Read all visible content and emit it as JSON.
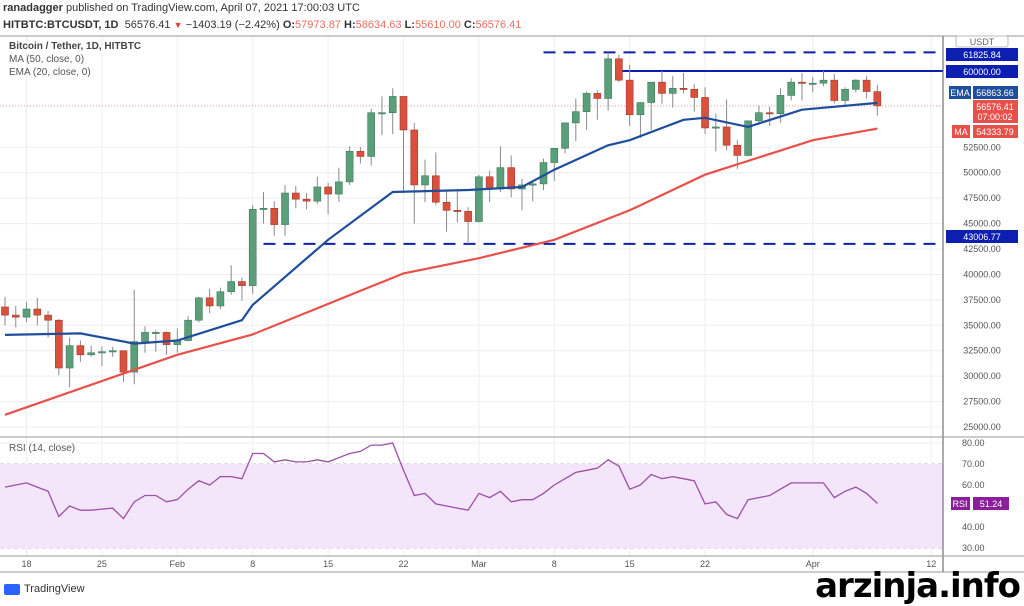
{
  "header": {
    "author": "ranadagger",
    "published_text": "published on TradingView.com, April 07, 2021 17:00:03 UTC",
    "symbol": "HITBTC:BTCUSDT, 1D",
    "last": "56576.41",
    "change": "−1403.19 (−2.42%)",
    "o_label": "O:",
    "o": "57973.87",
    "h_label": "H:",
    "h": "58634.63",
    "l_label": "L:",
    "l": "55610.00",
    "c_label": "C:",
    "c": "56576.41"
  },
  "legend": {
    "title": "Bitcoin / Tether, 1D, HITBTC",
    "ma": "MA (50, close, 0)",
    "ema": "EMA (20, close, 0)",
    "rsi": "RSI (14, close)"
  },
  "axis_labels": {
    "currency": "USDT",
    "ema_tag": "EMA",
    "ema_value": "56863.66",
    "ma_tag": "MA",
    "ma_value": "54333.79",
    "last_value": "56576.41",
    "countdown": "07:00:02",
    "level_61825": "61825.84",
    "level_60000": "60000.00",
    "level_43006": "43006.77",
    "rsi_tag": "RSI",
    "rsi_value": "51.24"
  },
  "footer": {
    "brand": "TradingView"
  },
  "watermark": "arzinja.info",
  "colors": {
    "up": "#5b9f7a",
    "down": "#d9503c",
    "ema": "#1f4e9c",
    "ma": "#e8504a",
    "level": "#0d1fb0",
    "rsi": "#9b4fa8",
    "rsi_band": "#f3e6fb",
    "tag_blue": "#0d1fb0",
    "tag_red": "#e8504a",
    "tag_purple": "#8a1f99"
  },
  "chart_data": [
    {
      "type": "candlestick",
      "title": "Bitcoin / Tether, 1D, HITBTC",
      "start_date": "2021-01-16",
      "ylim": [
        24000,
        63000
      ],
      "grid": true,
      "y_ticks": [
        25000,
        27500,
        30000,
        32500,
        35000,
        37500,
        40000,
        42500,
        45000,
        47500,
        50000,
        52500
      ],
      "x_ticks": [
        {
          "label": "18",
          "date": "2021-01-18"
        },
        {
          "label": "25",
          "date": "2021-01-25"
        },
        {
          "label": "Feb",
          "date": "2021-02-01"
        },
        {
          "label": "8",
          "date": "2021-02-08"
        },
        {
          "label": "15",
          "date": "2021-02-15"
        },
        {
          "label": "22",
          "date": "2021-02-22"
        },
        {
          "label": "Mar",
          "date": "2021-03-01"
        },
        {
          "label": "8",
          "date": "2021-03-08"
        },
        {
          "label": "15",
          "date": "2021-03-15"
        },
        {
          "label": "22",
          "date": "2021-03-22"
        },
        {
          "label": "Apr",
          "date": "2021-04-01"
        },
        {
          "label": "12",
          "date": "2021-04-12"
        }
      ],
      "open": [
        36800,
        36000,
        35800,
        36600,
        36000,
        35500,
        30800,
        33000,
        32100,
        32300,
        32400,
        32500,
        30400,
        33400,
        34300,
        34300,
        33100,
        33500,
        35500,
        37700,
        36900,
        38300,
        39300,
        38900,
        46400,
        46500,
        44900,
        48000,
        47400,
        47200,
        48600,
        47900,
        49100,
        52100,
        51600,
        55900,
        55900,
        57500,
        54200,
        48800,
        49700,
        47100,
        46300,
        46200,
        45200,
        49600,
        48400,
        50500,
        48400,
        48800,
        48900,
        51000,
        52400,
        54900,
        56000,
        57800,
        57300,
        61200,
        59100,
        55700,
        56900,
        58900,
        57800,
        58300,
        58200,
        57400,
        54400,
        54500,
        52700,
        51700,
        55100,
        55900,
        55800,
        57600,
        58900,
        58800,
        58800,
        59100,
        57100,
        58200,
        59100,
        57973.87
      ],
      "high": [
        37800,
        36900,
        37300,
        37700,
        36400,
        35600,
        33800,
        33500,
        33000,
        32900,
        32900,
        32500,
        38500,
        34900,
        34500,
        34400,
        34700,
        35900,
        37800,
        38600,
        38700,
        40900,
        39700,
        46800,
        48100,
        47200,
        48800,
        48700,
        48000,
        49600,
        49000,
        50500,
        52600,
        52500,
        56300,
        57500,
        58300,
        57500,
        54900,
        51300,
        52000,
        48300,
        48300,
        46600,
        49800,
        50200,
        52600,
        51700,
        49400,
        49200,
        51400,
        52400,
        54900,
        57300,
        58000,
        58100,
        61800,
        61600,
        60600,
        56900,
        58900,
        60000,
        59500,
        59800,
        58700,
        58400,
        55800,
        57200,
        53200,
        55100,
        56600,
        56500,
        58300,
        59300,
        59800,
        59400,
        60000,
        59700,
        58400,
        59200,
        59500,
        58634.63
      ],
      "low": [
        35000,
        34800,
        35300,
        35000,
        33800,
        30100,
        28900,
        31400,
        31900,
        31000,
        31900,
        29400,
        29200,
        32300,
        32400,
        32100,
        32300,
        33400,
        35300,
        36200,
        36600,
        38000,
        37400,
        38100,
        45000,
        43800,
        43800,
        46500,
        46400,
        46900,
        45900,
        47100,
        48800,
        50900,
        50700,
        53700,
        53800,
        48000,
        45000,
        47100,
        46800,
        44200,
        45100,
        43000,
        45100,
        47100,
        48100,
        47600,
        46300,
        47200,
        48300,
        49200,
        51900,
        53100,
        54200,
        55200,
        56100,
        58900,
        54600,
        53400,
        54200,
        56800,
        56400,
        57800,
        56000,
        53800,
        52100,
        52200,
        50400,
        51600,
        54700,
        54600,
        54900,
        57100,
        57100,
        57900,
        58500,
        56800,
        56600,
        57900,
        57300,
        55610.0
      ],
      "close": [
        36000,
        35800,
        36600,
        36000,
        35500,
        30800,
        33000,
        32100,
        32300,
        32400,
        32500,
        30400,
        33400,
        34300,
        34300,
        33100,
        33500,
        35500,
        37700,
        36900,
        38300,
        39300,
        38900,
        46400,
        46500,
        44900,
        48000,
        47400,
        47200,
        48600,
        47900,
        49100,
        52100,
        51600,
        55900,
        55900,
        57500,
        54200,
        48800,
        49700,
        47100,
        46300,
        46200,
        45200,
        49600,
        48400,
        50500,
        48400,
        48800,
        48900,
        51000,
        52400,
        54900,
        56000,
        57800,
        57300,
        61200,
        59100,
        55700,
        56900,
        58900,
        57800,
        58300,
        58200,
        57400,
        54400,
        54500,
        52700,
        51700,
        55100,
        55900,
        55800,
        57600,
        58900,
        58800,
        58800,
        59100,
        57100,
        58200,
        59100,
        57980,
        56576.41
      ],
      "ema20": [
        [
          "2021-01-16",
          34050
        ],
        [
          "2021-01-23",
          34200
        ],
        [
          "2021-01-28",
          33200
        ],
        [
          "2021-02-01",
          33500
        ],
        [
          "2021-02-07",
          35500
        ],
        [
          "2021-02-08",
          37000
        ],
        [
          "2021-02-15",
          43400
        ],
        [
          "2021-02-21",
          48100
        ],
        [
          "2021-02-28",
          48300
        ],
        [
          "2021-03-05",
          48600
        ],
        [
          "2021-03-08",
          50300
        ],
        [
          "2021-03-13",
          52700
        ],
        [
          "2021-03-15",
          53200
        ],
        [
          "2021-03-20",
          55200
        ],
        [
          "2021-03-22",
          55400
        ],
        [
          "2021-03-26",
          54500
        ],
        [
          "2021-03-31",
          56200
        ],
        [
          "2021-04-07",
          56863.66
        ]
      ],
      "ma50": [
        [
          "2021-01-16",
          26200
        ],
        [
          "2021-02-01",
          32100
        ],
        [
          "2021-02-08",
          34100
        ],
        [
          "2021-02-22",
          40100
        ],
        [
          "2021-03-01",
          41600
        ],
        [
          "2021-03-08",
          43400
        ],
        [
          "2021-03-15",
          46300
        ],
        [
          "2021-03-22",
          49800
        ],
        [
          "2021-04-01",
          53200
        ],
        [
          "2021-04-07",
          54333.79
        ]
      ],
      "levels": [
        {
          "value": 61825.84,
          "from": "2021-03-07",
          "style": "dashed"
        },
        {
          "value": 60000.0,
          "from": "2021-03-14",
          "style": "solid"
        },
        {
          "value": 43006.77,
          "from": "2021-02-09",
          "style": "dashed"
        }
      ],
      "last_price": 56576.41
    },
    {
      "type": "line",
      "title": "RSI (14, close)",
      "ylim": [
        27,
        82
      ],
      "y_ticks": [
        30,
        40,
        50,
        60,
        70,
        80
      ],
      "band": [
        30,
        70
      ],
      "values": [
        59,
        60,
        61,
        59,
        57,
        45,
        50,
        48,
        48,
        48.5,
        49,
        44,
        52,
        55,
        55,
        52,
        53,
        58,
        62,
        60,
        64,
        64,
        63,
        75,
        75,
        71,
        72,
        71,
        71,
        72,
        71,
        73,
        75,
        76,
        79,
        79,
        80,
        67,
        55,
        56,
        51,
        50,
        49,
        48,
        56,
        54,
        57,
        52,
        53,
        53,
        56,
        60,
        63,
        66,
        67,
        68,
        72,
        69,
        58,
        60,
        65,
        63,
        64,
        63,
        62,
        51,
        52,
        46,
        44,
        53,
        54,
        55,
        58,
        61,
        61,
        61,
        61,
        54,
        57,
        59,
        56,
        51.24
      ]
    }
  ]
}
